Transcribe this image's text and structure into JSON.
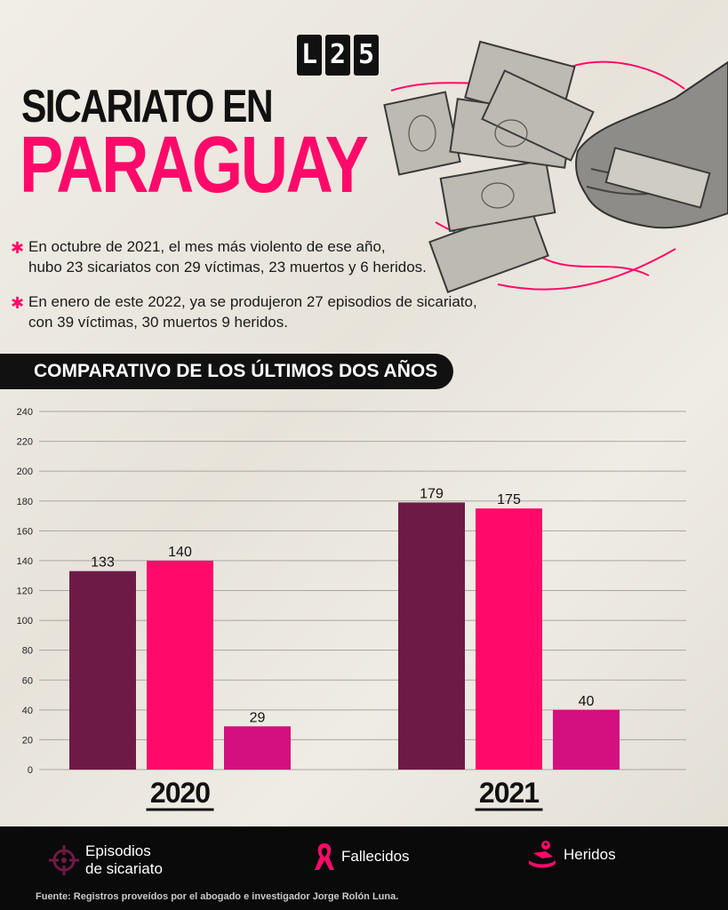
{
  "brand": {
    "logo_letters": [
      "L",
      "2",
      "5"
    ]
  },
  "header": {
    "title_line1": "SICARIATO EN",
    "title_line2": "PARAGUAY"
  },
  "bullets": [
    {
      "line1": "En octubre de 2021, el mes más violento de ese año,",
      "line2": "hubo 23 sicariatos con 29 víctimas, 23 muertos y 6 heridos."
    },
    {
      "line1": "En enero de este 2022, ya se produjeron 27 episodios de sicariato,",
      "line2": "con 39 víctimas, 30 muertos 9 heridos."
    }
  ],
  "banner": {
    "text": "COMPARATIVO DE LOS ÚLTIMOS DOS AÑOS"
  },
  "chart_data": {
    "type": "bar",
    "categories": [
      "2020",
      "2021"
    ],
    "series": [
      {
        "name": "Episodios de sicariato",
        "values": [
          133,
          179
        ],
        "color": "#6e1a47"
      },
      {
        "name": "Fallecidos",
        "values": [
          140,
          175
        ],
        "color": "#ff0a6a"
      },
      {
        "name": "Heridos",
        "values": [
          29,
          40
        ],
        "color": "#d4107f"
      }
    ],
    "ylim": [
      0,
      240
    ],
    "yticks": [
      "0",
      "20",
      "40",
      "60",
      "80",
      "100",
      "120",
      "140",
      "160",
      "180",
      "200",
      "220",
      "240"
    ],
    "grid": true,
    "legend": "bottom"
  },
  "legend": {
    "items": [
      {
        "label_line1": "Episodios",
        "label_line2": "de sicariato",
        "icon": "crosshair-icon",
        "color": "#6e1a47"
      },
      {
        "label_line1": "Fallecidos",
        "label_line2": "",
        "icon": "ribbon-icon",
        "color": "#ff0a6a"
      },
      {
        "label_line1": "Heridos",
        "label_line2": "",
        "icon": "injured-person-icon",
        "color": "#ff0a6a"
      }
    ]
  },
  "footer": {
    "source": "Fuente: Registros proveídos por el abogado e investigador Jorge Rolón Luna."
  },
  "colors": {
    "accent": "#ff0a6a",
    "dark": "#111111",
    "background": "#ece8e0"
  }
}
